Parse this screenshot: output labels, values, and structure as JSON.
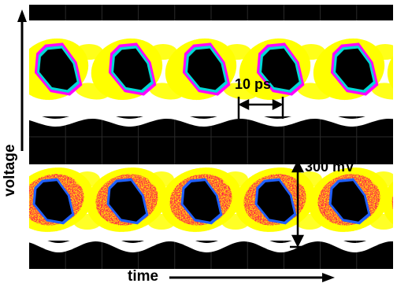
{
  "axes": {
    "y_label": "voltage",
    "x_label": "time"
  },
  "annotations": {
    "time_scale": "10 ps",
    "voltage_scale": "300 mV"
  },
  "colors": {
    "background": "#000000",
    "band_core": "#ffffff",
    "density_low": "#ffff00",
    "density_high": "#ff1a4a",
    "eye_edge_magenta": "#ff00ff",
    "eye_edge_cyan": "#00d8d8",
    "eye_edge_blue": "#2060ff",
    "eye_interior": "#000000"
  },
  "eye_diagrams": [
    {
      "name": "upper",
      "eye_count": 5
    },
    {
      "name": "lower",
      "eye_count": 5
    }
  ]
}
